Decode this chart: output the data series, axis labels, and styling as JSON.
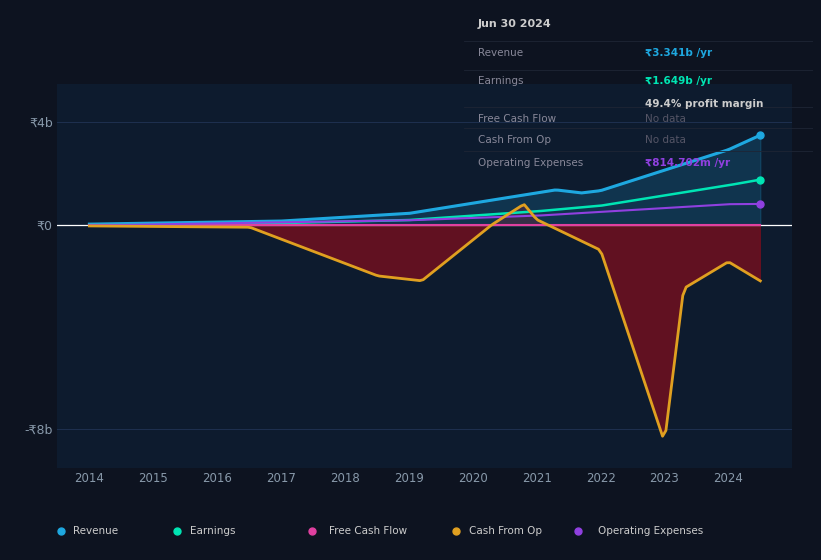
{
  "background_color": "#0d1320",
  "plot_bg_color": "#0d1b2e",
  "revenue_color": "#1ea8e0",
  "earnings_color": "#00e5b4",
  "free_cash_flow_color": "#e040a0",
  "cash_from_op_color": "#e0a020",
  "op_expenses_color": "#9040e0",
  "fill_below_color": "#6b1020",
  "fill_above_color": "#1ea8e040",
  "zero_line_color": "#ffffff",
  "grid_color": "#1e3050",
  "text_color": "#8899aa",
  "tooltip_date": "Jun 30 2024",
  "tooltip_revenue_label": "Revenue",
  "tooltip_revenue_val": "₹3.341b /yr",
  "tooltip_revenue_color": "#1ea8e0",
  "tooltip_earnings_label": "Earnings",
  "tooltip_earnings_val": "₹1.649b /yr",
  "tooltip_earnings_color": "#00e5b4",
  "tooltip_margin": "49.4% profit margin",
  "tooltip_fcf_label": "Free Cash Flow",
  "tooltip_fcf_val": "No data",
  "tooltip_cashop_label": "Cash From Op",
  "tooltip_cashop_val": "No data",
  "tooltip_opex_label": "Operating Expenses",
  "tooltip_opex_val": "₹814.702m /yr",
  "tooltip_opex_color": "#9040e0",
  "legend_labels": [
    "Revenue",
    "Earnings",
    "Free Cash Flow",
    "Cash From Op",
    "Operating Expenses"
  ],
  "ytick_labels": [
    "₹4b",
    "₹0",
    "-₹8b"
  ],
  "ylim_min": -9.5,
  "ylim_max": 5.5,
  "xlim_min": 2013.5,
  "xlim_max": 2025.0
}
